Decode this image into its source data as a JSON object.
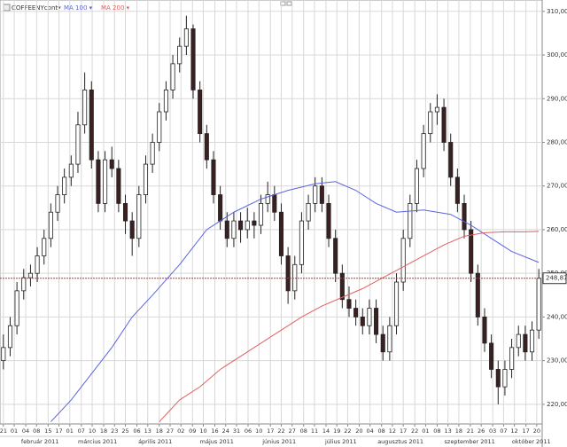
{
  "chart_data": {
    "type": "candlestick",
    "symbol": "COFFEENYcont▾",
    "ylim": [
      215.5,
      312.6
    ],
    "yticks": [
      {
        "value": 220,
        "label": "220,00"
      },
      {
        "value": 230,
        "label": "230,00"
      },
      {
        "value": 240,
        "label": "240,00"
      },
      {
        "value": 250,
        "label": "250,00"
      },
      {
        "value": 260,
        "label": "260,00"
      },
      {
        "value": 270,
        "label": "270,00"
      },
      {
        "value": 280,
        "label": "280,00"
      },
      {
        "value": 290,
        "label": "290,00"
      },
      {
        "value": 300,
        "label": "300,00"
      },
      {
        "value": 310,
        "label": "310,00"
      }
    ],
    "xlim": [
      -0.5,
      79.5
    ],
    "grid": true,
    "up_color": "#ffffff",
    "down_color": "#3a2020",
    "candles": [
      [
        230,
        236,
        228,
        233
      ],
      [
        233,
        240,
        231,
        238
      ],
      [
        238,
        248,
        236,
        246
      ],
      [
        246,
        251,
        244,
        249
      ],
      [
        249,
        252,
        247,
        250
      ],
      [
        250,
        256,
        248,
        254
      ],
      [
        254,
        260,
        252,
        258
      ],
      [
        258,
        266,
        256,
        264
      ],
      [
        264,
        270,
        262,
        268
      ],
      [
        268,
        274,
        266,
        272
      ],
      [
        272,
        277,
        270,
        275
      ],
      [
        275,
        287,
        273,
        284
      ],
      [
        284,
        296,
        282,
        292
      ],
      [
        292,
        294,
        274,
        276
      ],
      [
        276,
        278,
        264,
        266
      ],
      [
        266,
        278,
        264,
        276
      ],
      [
        276,
        279,
        272,
        274
      ],
      [
        274,
        276,
        264,
        266
      ],
      [
        266,
        268,
        259,
        262
      ],
      [
        262,
        264,
        254,
        258
      ],
      [
        258,
        270,
        256,
        268
      ],
      [
        268,
        277,
        266,
        275
      ],
      [
        275,
        282,
        273,
        280
      ],
      [
        280,
        289,
        278,
        287
      ],
      [
        287,
        294,
        285,
        292
      ],
      [
        292,
        300,
        290,
        298
      ],
      [
        298,
        304,
        296,
        302
      ],
      [
        302,
        309,
        300,
        306
      ],
      [
        306,
        307,
        290,
        292
      ],
      [
        292,
        294,
        280,
        282
      ],
      [
        282,
        284,
        274,
        276
      ],
      [
        276,
        278,
        266,
        268
      ],
      [
        268,
        270,
        260,
        262
      ],
      [
        262,
        264,
        256,
        258
      ],
      [
        258,
        264,
        256,
        262
      ],
      [
        262,
        264,
        257,
        260
      ],
      [
        260,
        265,
        258,
        262
      ],
      [
        262,
        264,
        258,
        261
      ],
      [
        261,
        268,
        259,
        266
      ],
      [
        266,
        271,
        264,
        268
      ],
      [
        268,
        270,
        262,
        264
      ],
      [
        264,
        266,
        252,
        254
      ],
      [
        254,
        256,
        243,
        246
      ],
      [
        246,
        254,
        244,
        252
      ],
      [
        252,
        264,
        250,
        262
      ],
      [
        262,
        268,
        260,
        266
      ],
      [
        266,
        272,
        264,
        270
      ],
      [
        270,
        272,
        264,
        266
      ],
      [
        266,
        268,
        256,
        258
      ],
      [
        258,
        260,
        248,
        250
      ],
      [
        250,
        252,
        242,
        244
      ],
      [
        244,
        247,
        240,
        242
      ],
      [
        242,
        244,
        238,
        240
      ],
      [
        240,
        242,
        236,
        238
      ],
      [
        238,
        244,
        236,
        242
      ],
      [
        242,
        244,
        234,
        236
      ],
      [
        236,
        238,
        230,
        232
      ],
      [
        232,
        240,
        230,
        238
      ],
      [
        238,
        250,
        236,
        248
      ],
      [
        248,
        260,
        246,
        258
      ],
      [
        258,
        268,
        256,
        266
      ],
      [
        266,
        276,
        264,
        274
      ],
      [
        274,
        284,
        272,
        282
      ],
      [
        282,
        289,
        280,
        287
      ],
      [
        287,
        291,
        284,
        288
      ],
      [
        288,
        290,
        278,
        280
      ],
      [
        280,
        282,
        270,
        272
      ],
      [
        272,
        274,
        264,
        266
      ],
      [
        266,
        268,
        258,
        260
      ],
      [
        260,
        262,
        248,
        250
      ],
      [
        250,
        252,
        238,
        240
      ],
      [
        240,
        242,
        232,
        234
      ],
      [
        234,
        236,
        226,
        228
      ],
      [
        228,
        230,
        220,
        224
      ],
      [
        224,
        230,
        222,
        228
      ],
      [
        228,
        235,
        226,
        233
      ],
      [
        233,
        238,
        231,
        236
      ],
      [
        236,
        238,
        230,
        232
      ],
      [
        232,
        239,
        230,
        237
      ],
      [
        237,
        251,
        235,
        248.87
      ]
    ],
    "series": [
      {
        "name": "MA 100 ▾",
        "color": "#5a63e0",
        "x": [
          7,
          10,
          13,
          16,
          19,
          22,
          26,
          30,
          34,
          38,
          42,
          46,
          49,
          52,
          55,
          58,
          62,
          66,
          69,
          72,
          75,
          79
        ],
        "values": [
          216,
          221,
          227,
          233,
          240,
          245,
          252,
          260,
          264,
          267,
          269,
          270.5,
          271,
          269,
          266,
          264,
          264.5,
          263.5,
          261,
          258,
          255,
          252.5
        ]
      },
      {
        "name": "MA 200 ▾",
        "color": "#e06060",
        "x": [
          23,
          26,
          29,
          32,
          35,
          38,
          41,
          44,
          47,
          50,
          53,
          56,
          59,
          62,
          65,
          68,
          71,
          74,
          77,
          79
        ],
        "values": [
          216,
          221,
          224,
          228,
          231,
          234,
          237,
          240,
          242.5,
          244.5,
          246.5,
          249,
          251.5,
          254,
          256.5,
          258.5,
          259.3,
          259.5,
          259.5,
          259.6
        ]
      }
    ],
    "last_price": {
      "value": 248.87,
      "label": "248,87"
    },
    "xticks": [
      {
        "value": 0,
        "label": "21"
      },
      {
        "value": 1.6,
        "label": "01"
      },
      {
        "value": 3.3,
        "label": "04"
      },
      {
        "value": 4.9,
        "label": "08"
      },
      {
        "value": 6.6,
        "label": "15"
      },
      {
        "value": 8.2,
        "label": "17"
      },
      {
        "value": 9.8,
        "label": "01"
      },
      {
        "value": 11.5,
        "label": "07"
      },
      {
        "value": 13.1,
        "label": "10"
      },
      {
        "value": 14.8,
        "label": "18"
      },
      {
        "value": 16.4,
        "label": "23"
      },
      {
        "value": 18,
        "label": "25"
      },
      {
        "value": 19.7,
        "label": "06"
      },
      {
        "value": 21.3,
        "label": "13"
      },
      {
        "value": 23,
        "label": "18"
      },
      {
        "value": 24.6,
        "label": "27"
      },
      {
        "value": 26.2,
        "label": "02"
      },
      {
        "value": 27.9,
        "label": "09"
      },
      {
        "value": 29.5,
        "label": "10"
      },
      {
        "value": 31.2,
        "label": "16"
      },
      {
        "value": 32.8,
        "label": "24"
      },
      {
        "value": 34.4,
        "label": "31"
      },
      {
        "value": 36.1,
        "label": "06"
      },
      {
        "value": 37.7,
        "label": "10"
      },
      {
        "value": 39.4,
        "label": "17"
      },
      {
        "value": 41,
        "label": "22"
      },
      {
        "value": 42.6,
        "label": "27"
      },
      {
        "value": 44.3,
        "label": "08"
      },
      {
        "value": 45.9,
        "label": "11"
      },
      {
        "value": 47.6,
        "label": "14"
      },
      {
        "value": 49.2,
        "label": "19"
      },
      {
        "value": 50.8,
        "label": "22"
      },
      {
        "value": 52.5,
        "label": "20"
      },
      {
        "value": 54.1,
        "label": "04"
      },
      {
        "value": 55.8,
        "label": "08"
      },
      {
        "value": 57.4,
        "label": "12"
      },
      {
        "value": 59,
        "label": "17"
      },
      {
        "value": 60.7,
        "label": "22"
      },
      {
        "value": 62.3,
        "label": "01"
      },
      {
        "value": 64,
        "label": "08"
      },
      {
        "value": 65.6,
        "label": "13"
      },
      {
        "value": 67.2,
        "label": "18"
      },
      {
        "value": 68.9,
        "label": "21"
      },
      {
        "value": 70.5,
        "label": "26"
      },
      {
        "value": 72.2,
        "label": "03"
      },
      {
        "value": 73.8,
        "label": "07"
      },
      {
        "value": 75.4,
        "label": "12"
      },
      {
        "value": 77.1,
        "label": "17"
      },
      {
        "value": 78.7,
        "label": "20"
      }
    ],
    "month_labels": [
      {
        "value": 5.4,
        "label": "február 2011"
      },
      {
        "value": 13.9,
        "label": "március 2011"
      },
      {
        "value": 22.4,
        "label": "április 2011"
      },
      {
        "value": 31.5,
        "label": "május 2011"
      },
      {
        "value": 40.7,
        "label": "június 2011"
      },
      {
        "value": 49.8,
        "label": "július 2011"
      },
      {
        "value": 58.6,
        "label": "augusztus 2011"
      },
      {
        "value": 68.8,
        "label": "szeptember 2011"
      },
      {
        "value": 77.9,
        "label": "október 2011"
      }
    ]
  }
}
